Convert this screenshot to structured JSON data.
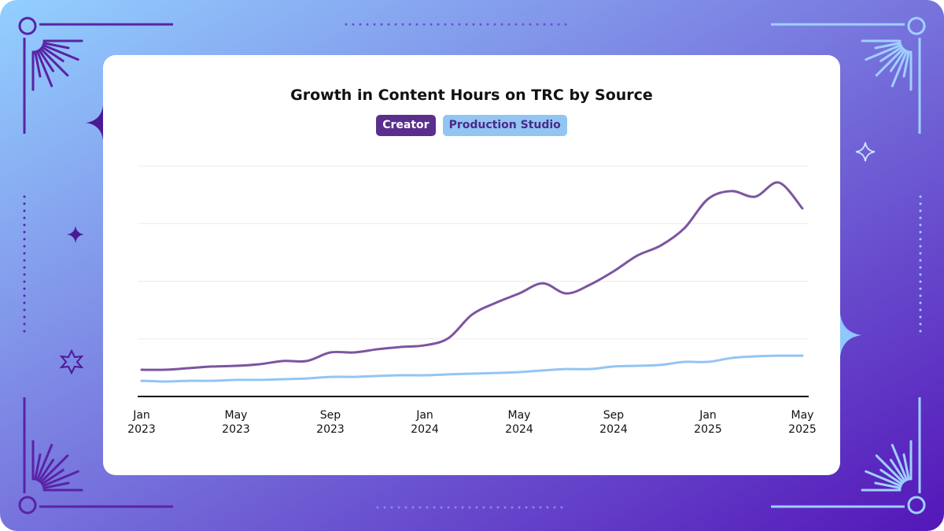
{
  "chart_data": {
    "type": "line",
    "title": "Growth in Content Hours on TRC by Source",
    "categories": [
      "Jan 2023",
      null,
      null,
      null,
      "May 2023",
      null,
      null,
      null,
      "Sep 2023",
      null,
      null,
      null,
      "Jan 2024",
      null,
      null,
      null,
      "May 2024",
      null,
      null,
      null,
      "Sep 2024",
      null,
      null,
      null,
      "Jan 2025",
      null,
      null,
      null,
      "May 2025"
    ],
    "series": [
      {
        "name": "Creator",
        "color": "#7b559f",
        "legend_color": "#5a2e8c",
        "values": [
          11.6,
          11.6,
          12.3,
          13.0,
          13.3,
          14.0,
          15.4,
          15.4,
          19.1,
          19.1,
          20.5,
          21.5,
          22.2,
          25.3,
          35.5,
          40.6,
          44.7,
          49.1,
          44.7,
          48.5,
          54.3,
          61.1,
          65.5,
          73.0,
          85.7,
          89.1,
          86.7,
          92.8,
          81.6
        ]
      },
      {
        "name": "Production Studio",
        "color": "#93c5f2",
        "legend_color": "#93c5f2",
        "values": [
          6.8,
          6.5,
          6.8,
          6.8,
          7.2,
          7.2,
          7.5,
          7.8,
          8.5,
          8.5,
          8.9,
          9.2,
          9.2,
          9.6,
          9.9,
          10.2,
          10.6,
          11.3,
          11.9,
          11.9,
          13.0,
          13.3,
          13.7,
          15.0,
          15.0,
          16.7,
          17.4,
          17.7,
          17.7
        ]
      }
    ],
    "ylim": [
      0,
      100
    ],
    "yticks": [
      0,
      25,
      50,
      75,
      100
    ],
    "grid": true
  }
}
